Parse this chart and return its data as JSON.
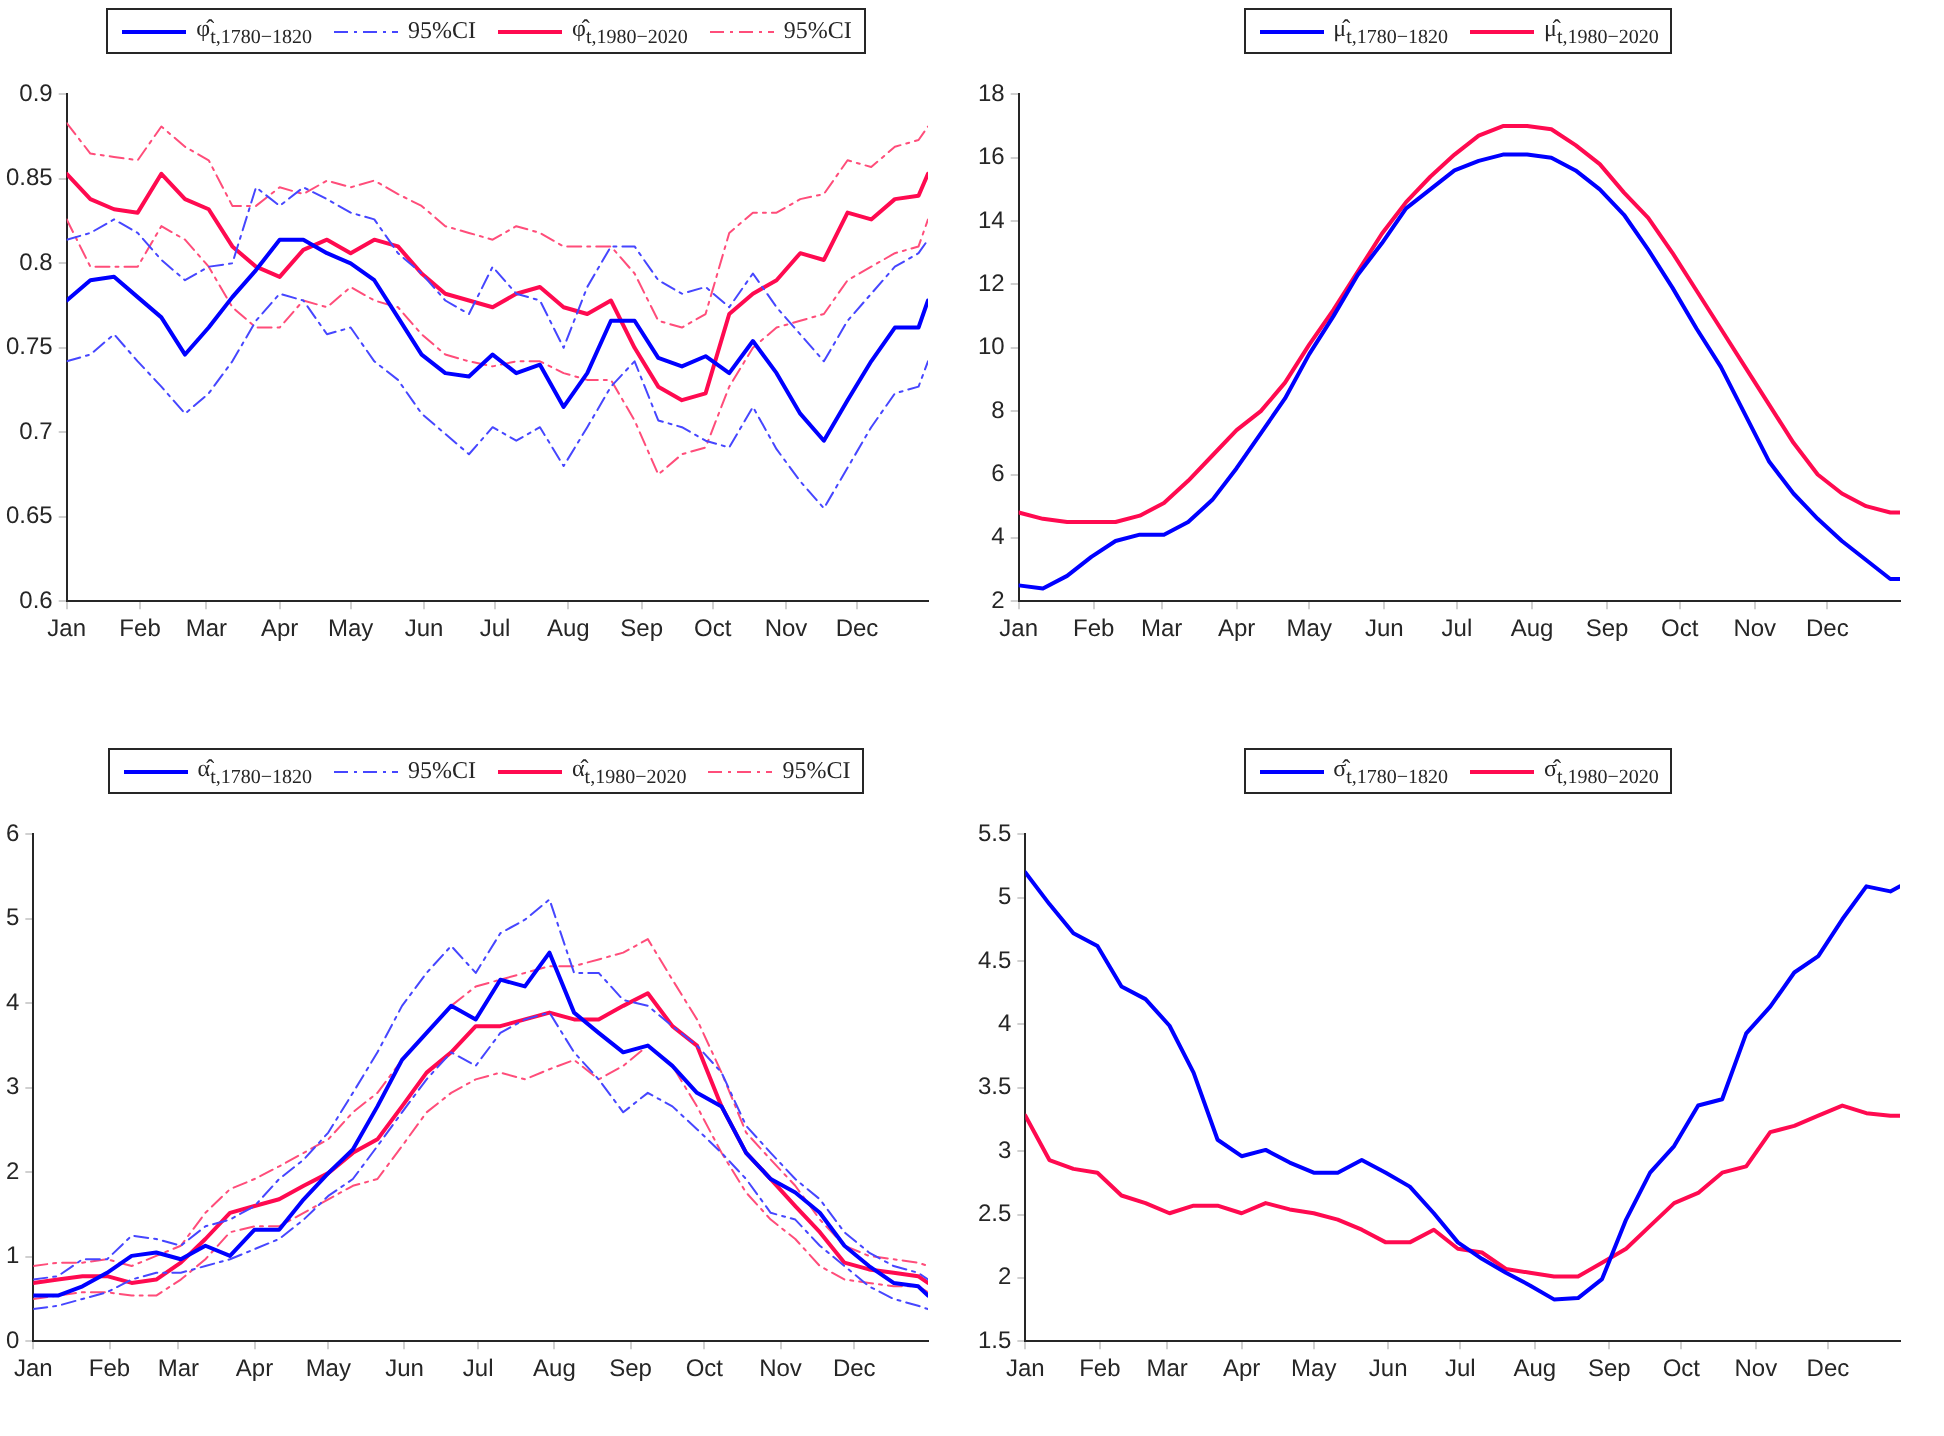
{
  "chart_data": [
    {
      "type": "line",
      "legend": "top",
      "grid": false,
      "x": [
        "--01-01",
        "--01-11",
        "--01-21",
        "--01-31",
        "--02-10",
        "--02-20",
        "--03-02",
        "--03-12",
        "--03-22",
        "--04-01",
        "--04-11",
        "--04-21",
        "--05-01",
        "--05-11",
        "--05-21",
        "--05-31",
        "--06-10",
        "--06-20",
        "--06-30",
        "--07-10",
        "--07-20",
        "--07-30",
        "--08-09",
        "--08-19",
        "--08-29",
        "--09-08",
        "--09-18",
        "--09-28",
        "--10-08",
        "--10-18",
        "--10-28",
        "--11-07",
        "--11-17",
        "--11-27",
        "--12-07",
        "--12-17",
        "--12-27",
        "--12-31"
      ],
      "xlim": [
        "--01-01",
        "--12-31"
      ],
      "xticks": [
        {
          "value": "--01-01",
          "label": "Jan"
        },
        {
          "value": "--02-01",
          "label": "Feb"
        },
        {
          "value": "--03-01",
          "label": "Mar"
        },
        {
          "value": "--04-01",
          "label": "Apr"
        },
        {
          "value": "--05-01",
          "label": "May"
        },
        {
          "value": "--06-01",
          "label": "Jun"
        },
        {
          "value": "--07-01",
          "label": "Jul"
        },
        {
          "value": "--08-01",
          "label": "Aug"
        },
        {
          "value": "--09-01",
          "label": "Sep"
        },
        {
          "value": "--10-01",
          "label": "Oct"
        },
        {
          "value": "--11-01",
          "label": "Nov"
        },
        {
          "value": "--12-01",
          "label": "Dec"
        }
      ],
      "ylim": [
        0.6,
        0.9
      ],
      "yticks": [
        0.6,
        0.65,
        0.7,
        0.75,
        0.8,
        0.85,
        0.9
      ],
      "series": [
        {
          "name": "φ̂$_{t,1780−1820}$",
          "color": "#0000ff",
          "line_style": "solid",
          "values": [
            0.778,
            0.79,
            0.792,
            0.78,
            0.768,
            0.746,
            0.762,
            0.78,
            0.796,
            0.814,
            0.814,
            0.806,
            0.8,
            0.79,
            0.768,
            0.746,
            0.735,
            0.733,
            0.746,
            0.735,
            0.74,
            0.715,
            0.735,
            0.766,
            0.766,
            0.744,
            0.739,
            0.745,
            0.735,
            0.754,
            0.735,
            0.711,
            0.695,
            0.719,
            0.742,
            0.762,
            0.762,
            0.778
          ]
        },
        {
          "name": "95%CI",
          "color": "#4646ff",
          "line_style": "dashed",
          "values": [
            0.814,
            0.818,
            0.826,
            0.818,
            0.802,
            0.79,
            0.798,
            0.8,
            0.845,
            0.834,
            0.845,
            0.838,
            0.83,
            0.826,
            0.806,
            0.794,
            0.778,
            0.77,
            0.798,
            0.782,
            0.778,
            0.75,
            0.786,
            0.81,
            0.81,
            0.79,
            0.782,
            0.786,
            0.774,
            0.794,
            0.774,
            0.758,
            0.742,
            0.766,
            0.782,
            0.798,
            0.806,
            0.814
          ]
        },
        {
          "color": "#4646ff",
          "line_style": "dashed",
          "values": [
            0.742,
            0.746,
            0.758,
            0.742,
            0.727,
            0.711,
            0.723,
            0.742,
            0.766,
            0.782,
            0.778,
            0.758,
            0.762,
            0.742,
            0.731,
            0.711,
            0.699,
            0.687,
            0.703,
            0.695,
            0.703,
            0.68,
            0.703,
            0.727,
            0.742,
            0.707,
            0.703,
            0.695,
            0.691,
            0.715,
            0.69,
            0.671,
            0.655,
            0.679,
            0.703,
            0.723,
            0.727,
            0.742
          ]
        },
        {
          "name": "φ̂$_{t,1980−2020}$",
          "color": "#ff0a50",
          "line_style": "solid",
          "values": [
            0.853,
            0.838,
            0.832,
            0.83,
            0.853,
            0.838,
            0.832,
            0.81,
            0.798,
            0.792,
            0.808,
            0.814,
            0.806,
            0.814,
            0.81,
            0.794,
            0.782,
            0.778,
            0.774,
            0.782,
            0.786,
            0.774,
            0.77,
            0.778,
            0.75,
            0.727,
            0.719,
            0.723,
            0.77,
            0.782,
            0.79,
            0.806,
            0.802,
            0.83,
            0.826,
            0.838,
            0.84,
            0.853
          ]
        },
        {
          "name": "95%CI",
          "color": "#ff4d7a",
          "line_style": "dashed",
          "values": [
            0.883,
            0.865,
            0.863,
            0.861,
            0.881,
            0.869,
            0.861,
            0.834,
            0.834,
            0.845,
            0.841,
            0.849,
            0.845,
            0.849,
            0.841,
            0.834,
            0.822,
            0.818,
            0.814,
            0.822,
            0.818,
            0.81,
            0.81,
            0.81,
            0.794,
            0.766,
            0.762,
            0.77,
            0.818,
            0.83,
            0.83,
            0.838,
            0.841,
            0.861,
            0.857,
            0.869,
            0.873,
            0.881
          ]
        },
        {
          "color": "#ff4d7a",
          "line_style": "dashed",
          "values": [
            0.826,
            0.798,
            0.798,
            0.798,
            0.822,
            0.814,
            0.798,
            0.774,
            0.762,
            0.762,
            0.778,
            0.774,
            0.786,
            0.778,
            0.774,
            0.758,
            0.746,
            0.742,
            0.739,
            0.742,
            0.742,
            0.735,
            0.731,
            0.731,
            0.707,
            0.675,
            0.687,
            0.691,
            0.727,
            0.75,
            0.762,
            0.766,
            0.77,
            0.79,
            0.798,
            0.806,
            0.81,
            0.826
          ]
        }
      ]
    },
    {
      "type": "line",
      "legend": "top",
      "grid": false,
      "x": [
        "--01-01",
        "--01-11",
        "--01-21",
        "--01-31",
        "--02-10",
        "--02-20",
        "--03-02",
        "--03-12",
        "--03-22",
        "--04-01",
        "--04-11",
        "--04-21",
        "--05-01",
        "--05-11",
        "--05-21",
        "--05-31",
        "--06-10",
        "--06-20",
        "--06-30",
        "--07-10",
        "--07-20",
        "--07-30",
        "--08-09",
        "--08-19",
        "--08-29",
        "--09-08",
        "--09-18",
        "--09-28",
        "--10-08",
        "--10-18",
        "--10-28",
        "--11-07",
        "--11-17",
        "--11-27",
        "--12-07",
        "--12-17",
        "--12-27",
        "--12-31"
      ],
      "xlim": [
        "--01-01",
        "--12-31"
      ],
      "xticks": [
        {
          "value": "--01-01",
          "label": "Jan"
        },
        {
          "value": "--02-01",
          "label": "Feb"
        },
        {
          "value": "--03-01",
          "label": "Mar"
        },
        {
          "value": "--04-01",
          "label": "Apr"
        },
        {
          "value": "--05-01",
          "label": "May"
        },
        {
          "value": "--06-01",
          "label": "Jun"
        },
        {
          "value": "--07-01",
          "label": "Jul"
        },
        {
          "value": "--08-01",
          "label": "Aug"
        },
        {
          "value": "--09-01",
          "label": "Sep"
        },
        {
          "value": "--10-01",
          "label": "Oct"
        },
        {
          "value": "--11-01",
          "label": "Nov"
        },
        {
          "value": "--12-01",
          "label": "Dec"
        }
      ],
      "ylim": [
        2,
        18
      ],
      "yticks": [
        2,
        4,
        6,
        8,
        10,
        12,
        14,
        16,
        18
      ],
      "series": [
        {
          "name": "μ̂$_{t,1780−1820}$",
          "color": "#0000ff",
          "line_style": "solid",
          "values": [
            2.5,
            2.4,
            2.8,
            3.4,
            3.9,
            4.1,
            4.1,
            4.5,
            5.2,
            6.2,
            7.3,
            8.4,
            9.8,
            11.0,
            12.3,
            13.3,
            14.4,
            15.0,
            15.6,
            15.9,
            16.1,
            16.1,
            16.0,
            15.6,
            15.0,
            14.2,
            13.1,
            11.9,
            10.6,
            9.4,
            7.9,
            6.4,
            5.4,
            4.6,
            3.9,
            3.3,
            2.7,
            2.7
          ]
        },
        {
          "name": "μ̂$_{t,1980−2020}$",
          "color": "#ff0a50",
          "line_style": "solid",
          "values": [
            4.8,
            4.6,
            4.5,
            4.5,
            4.5,
            4.7,
            5.1,
            5.8,
            6.6,
            7.4,
            8.0,
            8.9,
            10.1,
            11.2,
            12.4,
            13.6,
            14.6,
            15.4,
            16.1,
            16.7,
            17.0,
            17.0,
            16.9,
            16.4,
            15.8,
            14.9,
            14.1,
            13.0,
            11.8,
            10.6,
            9.4,
            8.2,
            7.0,
            6.0,
            5.4,
            5.0,
            4.8,
            4.8
          ]
        }
      ]
    },
    {
      "type": "line",
      "legend": "top",
      "grid": false,
      "x": [
        "--01-01",
        "--01-11",
        "--01-21",
        "--01-31",
        "--02-10",
        "--02-20",
        "--03-02",
        "--03-12",
        "--03-22",
        "--04-01",
        "--04-11",
        "--04-21",
        "--05-01",
        "--05-11",
        "--05-21",
        "--05-31",
        "--06-10",
        "--06-20",
        "--06-30",
        "--07-10",
        "--07-20",
        "--07-30",
        "--08-09",
        "--08-19",
        "--08-29",
        "--09-08",
        "--09-18",
        "--09-28",
        "--10-08",
        "--10-18",
        "--10-28",
        "--11-07",
        "--11-17",
        "--11-27",
        "--12-07",
        "--12-17",
        "--12-27",
        "--12-31"
      ],
      "xlim": [
        "--01-01",
        "--12-31"
      ],
      "xticks": [
        {
          "value": "--01-01",
          "label": "Jan"
        },
        {
          "value": "--02-01",
          "label": "Feb"
        },
        {
          "value": "--03-01",
          "label": "Mar"
        },
        {
          "value": "--04-01",
          "label": "Apr"
        },
        {
          "value": "--05-01",
          "label": "May"
        },
        {
          "value": "--06-01",
          "label": "Jun"
        },
        {
          "value": "--07-01",
          "label": "Jul"
        },
        {
          "value": "--08-01",
          "label": "Aug"
        },
        {
          "value": "--09-01",
          "label": "Sep"
        },
        {
          "value": "--10-01",
          "label": "Oct"
        },
        {
          "value": "--11-01",
          "label": "Nov"
        },
        {
          "value": "--12-01",
          "label": "Dec"
        }
      ],
      "ylim": [
        0,
        6
      ],
      "yticks": [
        0,
        1,
        2,
        3,
        4,
        5,
        6
      ],
      "series": [
        {
          "name": "α̂$_{t,1780−1820}$",
          "color": "#0000ff",
          "line_style": "solid",
          "values": [
            0.54,
            0.54,
            0.65,
            0.81,
            1.01,
            1.05,
            0.97,
            1.13,
            1.01,
            1.32,
            1.32,
            1.68,
            1.99,
            2.27,
            2.78,
            3.33,
            3.65,
            3.97,
            3.81,
            4.28,
            4.2,
            4.6,
            3.89,
            3.65,
            3.42,
            3.5,
            3.26,
            2.94,
            2.78,
            2.23,
            1.92,
            1.76,
            1.52,
            1.13,
            0.89,
            0.69,
            0.65,
            0.54
          ]
        },
        {
          "name": "95%CI",
          "color": "#4646ff",
          "line_style": "dashed",
          "values": [
            0.73,
            0.77,
            0.97,
            0.97,
            1.25,
            1.21,
            1.13,
            1.36,
            1.44,
            1.6,
            1.92,
            2.15,
            2.47,
            2.94,
            3.42,
            3.97,
            4.36,
            4.68,
            4.36,
            4.83,
            4.99,
            5.23,
            4.36,
            4.36,
            4.04,
            3.97,
            3.73,
            3.5,
            3.18,
            2.55,
            2.23,
            1.92,
            1.68,
            1.29,
            1.05,
            0.89,
            0.81,
            0.73
          ]
        },
        {
          "color": "#4646ff",
          "line_style": "dashed",
          "values": [
            0.38,
            0.42,
            0.5,
            0.58,
            0.73,
            0.81,
            0.81,
            0.89,
            0.97,
            1.09,
            1.21,
            1.44,
            1.72,
            1.92,
            2.31,
            2.71,
            3.1,
            3.42,
            3.26,
            3.65,
            3.81,
            3.89,
            3.42,
            3.1,
            2.71,
            2.94,
            2.78,
            2.51,
            2.23,
            1.92,
            1.52,
            1.44,
            1.13,
            0.89,
            0.65,
            0.5,
            0.42,
            0.38
          ]
        },
        {
          "name": "α̂$_{t,1980−2020}$",
          "color": "#ff0a50",
          "line_style": "solid",
          "values": [
            0.69,
            0.73,
            0.77,
            0.77,
            0.69,
            0.73,
            0.93,
            1.21,
            1.52,
            1.6,
            1.68,
            1.84,
            1.99,
            2.23,
            2.39,
            2.78,
            3.18,
            3.42,
            3.73,
            3.73,
            3.81,
            3.89,
            3.81,
            3.81,
            3.97,
            4.12,
            3.73,
            3.5,
            2.78,
            2.23,
            1.92,
            1.6,
            1.29,
            0.93,
            0.85,
            0.81,
            0.77,
            0.69
          ]
        },
        {
          "name": "95%CI",
          "color": "#ff4d7a",
          "line_style": "dashed",
          "values": [
            0.89,
            0.93,
            0.93,
            0.97,
            0.89,
            1.01,
            1.13,
            1.52,
            1.8,
            1.92,
            2.07,
            2.23,
            2.39,
            2.71,
            2.94,
            3.33,
            3.65,
            3.97,
            4.2,
            4.28,
            4.36,
            4.44,
            4.44,
            4.52,
            4.6,
            4.76,
            4.28,
            3.81,
            3.18,
            2.47,
            2.15,
            1.84,
            1.44,
            1.13,
            1.01,
            0.97,
            0.93,
            0.89
          ]
        },
        {
          "color": "#ff4d7a",
          "line_style": "dashed",
          "values": [
            0.5,
            0.54,
            0.58,
            0.58,
            0.54,
            0.54,
            0.73,
            0.97,
            1.29,
            1.36,
            1.36,
            1.52,
            1.68,
            1.84,
            1.92,
            2.31,
            2.71,
            2.94,
            3.1,
            3.18,
            3.1,
            3.22,
            3.33,
            3.1,
            3.26,
            3.5,
            3.26,
            2.78,
            2.23,
            1.76,
            1.44,
            1.21,
            0.89,
            0.73,
            0.69,
            0.65,
            0.65,
            0.58
          ]
        }
      ]
    },
    {
      "type": "line",
      "legend": "top",
      "grid": false,
      "x": [
        "--01-01",
        "--01-11",
        "--01-21",
        "--01-31",
        "--02-10",
        "--02-20",
        "--03-02",
        "--03-12",
        "--03-22",
        "--04-01",
        "--04-11",
        "--04-21",
        "--05-01",
        "--05-11",
        "--05-21",
        "--05-31",
        "--06-10",
        "--06-20",
        "--06-30",
        "--07-10",
        "--07-20",
        "--07-30",
        "--08-09",
        "--08-19",
        "--08-29",
        "--09-08",
        "--09-18",
        "--09-28",
        "--10-08",
        "--10-18",
        "--10-28",
        "--11-07",
        "--11-17",
        "--11-27",
        "--12-07",
        "--12-17",
        "--12-27",
        "--12-31"
      ],
      "xlim": [
        "--01-01",
        "--12-31"
      ],
      "xticks": [
        {
          "value": "--01-01",
          "label": "Jan"
        },
        {
          "value": "--02-01",
          "label": "Feb"
        },
        {
          "value": "--03-01",
          "label": "Mar"
        },
        {
          "value": "--04-01",
          "label": "Apr"
        },
        {
          "value": "--05-01",
          "label": "May"
        },
        {
          "value": "--06-01",
          "label": "Jun"
        },
        {
          "value": "--07-01",
          "label": "Jul"
        },
        {
          "value": "--08-01",
          "label": "Aug"
        },
        {
          "value": "--09-01",
          "label": "Sep"
        },
        {
          "value": "--10-01",
          "label": "Oct"
        },
        {
          "value": "--11-01",
          "label": "Nov"
        },
        {
          "value": "--12-01",
          "label": "Dec"
        }
      ],
      "ylim": [
        1.5,
        5.5
      ],
      "yticks": [
        1.5,
        2,
        2.5,
        3,
        3.5,
        4,
        4.5,
        5,
        5.5
      ],
      "series": [
        {
          "name": "σ̂$_{t,1780−1820}$",
          "color": "#0000ff",
          "line_style": "solid",
          "values": [
            5.2,
            4.95,
            4.72,
            4.62,
            4.3,
            4.2,
            3.99,
            3.62,
            3.09,
            2.96,
            3.01,
            2.91,
            2.83,
            2.83,
            2.93,
            2.83,
            2.72,
            2.51,
            2.28,
            2.15,
            2.04,
            1.94,
            1.83,
            1.84,
            1.99,
            2.46,
            2.83,
            3.04,
            3.36,
            3.41,
            3.93,
            4.14,
            4.41,
            4.54,
            4.83,
            5.09,
            5.05,
            5.09
          ]
        },
        {
          "name": "σ̂$_{t,1980−2020}$",
          "color": "#ff0a50",
          "line_style": "solid",
          "values": [
            3.28,
            2.93,
            2.86,
            2.83,
            2.65,
            2.59,
            2.51,
            2.57,
            2.57,
            2.51,
            2.59,
            2.54,
            2.51,
            2.46,
            2.38,
            2.28,
            2.28,
            2.38,
            2.23,
            2.2,
            2.07,
            2.04,
            2.01,
            2.01,
            2.12,
            2.23,
            2.41,
            2.59,
            2.67,
            2.83,
            2.88,
            3.15,
            3.2,
            3.28,
            3.36,
            3.3,
            3.28,
            3.28
          ]
        }
      ]
    }
  ]
}
